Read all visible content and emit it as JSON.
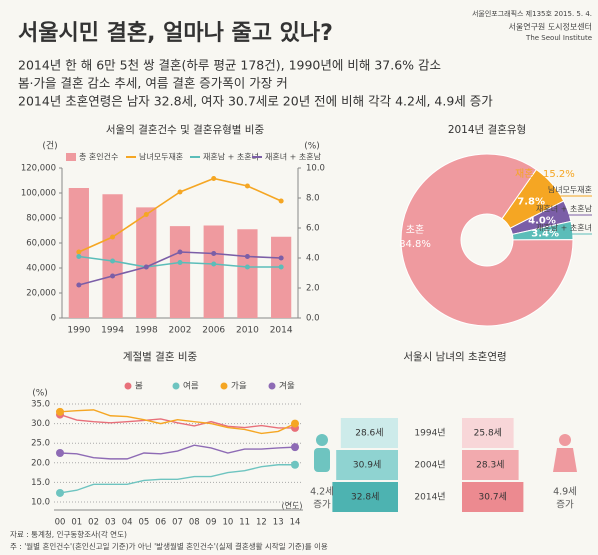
{
  "header": {
    "title": "서울시민 결혼, 얼마나 줄고 있나?",
    "publisher": [
      "서울인포그래픽스 제135호 2015. 5. 4.",
      "서울연구원 도시정보센터",
      "The Seoul Institute"
    ],
    "lines": [
      "2014년 한 해 6만 5천 쌍 결혼(하루 평균 178건), 1990년에 비해 37.6% 감소",
      "봄·가을 결혼 감소 추세, 여름 결혼 증가폭이 가장 커",
      "2014년 초혼연령은 남자 32.8세, 여자 30.7세로 20년 전에 비해 각각 4.2세, 4.9세 증가"
    ]
  },
  "chart_data": [
    {
      "type": "bar",
      "title": "서울의 결혼건수 및 결혼유형별 비중",
      "yunit": "(건)",
      "y2unit": "(%)",
      "categories": [
        "1990",
        "1994",
        "1998",
        "2002",
        "2006",
        "2010",
        "2014"
      ],
      "series": [
        {
          "name": "총 혼인건수",
          "color": "#ef9a9f",
          "values": [
            104000,
            99000,
            88500,
            73500,
            74000,
            71000,
            65000
          ]
        },
        {
          "name": "남녀모두재혼",
          "color": "#f5a623",
          "axis": "y2",
          "values": [
            4.4,
            5.4,
            6.9,
            8.4,
            9.3,
            8.8,
            7.8
          ]
        },
        {
          "name": "재혼남 + 초혼녀",
          "color": "#5bbdb9",
          "axis": "y2",
          "values": [
            4.1,
            3.8,
            3.4,
            3.7,
            3.6,
            3.4,
            3.4
          ]
        },
        {
          "name": "재혼녀 + 초혼남",
          "color": "#7b5ea7",
          "axis": "y2",
          "values": [
            2.2,
            2.8,
            3.4,
            4.4,
            4.3,
            4.1,
            4.0
          ]
        }
      ],
      "ylim": [
        0,
        120000
      ],
      "yticks": [
        0,
        {
          "value": 20000,
          "label": "20,000"
        },
        {
          "value": 40000,
          "label": "40,000"
        },
        {
          "value": 60000,
          "label": "60,000"
        },
        {
          "value": 80000,
          "label": "80,000"
        },
        {
          "value": 100000,
          "label": "100,000"
        },
        {
          "value": 120000,
          "label": "120,000"
        }
      ],
      "y2lim": [
        0,
        10
      ],
      "y2ticks": [
        {
          "value": 0,
          "label": "0.0"
        },
        {
          "value": 2,
          "label": "2.0"
        },
        {
          "value": 4,
          "label": "4.0"
        },
        {
          "value": 6,
          "label": "6.0"
        },
        {
          "value": 8,
          "label": "8.0"
        },
        {
          "value": 10,
          "label": "10.0"
        }
      ],
      "grid": false
    },
    {
      "type": "pie",
      "title": "2014년 결혼유형",
      "categories": [
        "남녀모두재혼",
        "재혼녀 + 초혼남",
        "재혼남 + 초혼녀",
        "초혼"
      ],
      "values": [
        7.8,
        4.0,
        3.4,
        84.8
      ],
      "value_labels": [
        "7.8%",
        "4.0%",
        "3.4%",
        "84.8%"
      ],
      "colors": [
        "#f5a623",
        "#7b5ea7",
        "#5bbdb9",
        "#ef9a9f"
      ],
      "group": {
        "name": "재혼",
        "value": 15.2,
        "value_label": "15.2%"
      }
    },
    {
      "type": "line",
      "title": "계절별 결혼 비중",
      "yunit": "(%)",
      "xunit": "(연도)",
      "categories": [
        "00",
        "01",
        "02",
        "03",
        "04",
        "05",
        "06",
        "07",
        "08",
        "09",
        "10",
        "11",
        "12",
        "13",
        "14"
      ],
      "series": [
        {
          "name": "봄",
          "color": "#e8707a",
          "values": [
            32.3,
            30.9,
            30.5,
            30.2,
            30.5,
            30.8,
            31.2,
            30.2,
            29.4,
            30.5,
            29.3,
            29.0,
            29.5,
            28.9,
            28.9
          ]
        },
        {
          "name": "여름",
          "color": "#6ec4c0",
          "values": [
            12.3,
            13.0,
            14.5,
            14.5,
            14.5,
            15.5,
            15.8,
            15.8,
            16.5,
            16.5,
            17.5,
            18.0,
            19.0,
            19.5,
            19.5
          ]
        },
        {
          "name": "가을",
          "color": "#f5a623",
          "values": [
            33.0,
            33.3,
            33.5,
            32.0,
            31.8,
            31.0,
            30.0,
            31.0,
            30.5,
            30.0,
            29.0,
            28.5,
            27.5,
            28.0,
            30.0
          ]
        },
        {
          "name": "겨울",
          "color": "#8e6bb5",
          "values": [
            22.5,
            22.3,
            21.3,
            21.0,
            21.0,
            22.5,
            22.3,
            23.0,
            24.5,
            23.8,
            22.5,
            23.5,
            23.5,
            23.8,
            24.0
          ]
        }
      ],
      "ylim": [
        10,
        35
      ],
      "yticks": [
        {
          "value": 10,
          "label": "10.0"
        },
        {
          "value": 15,
          "label": "15.0"
        },
        {
          "value": 20,
          "label": "20.0"
        },
        {
          "value": 25,
          "label": "25.0"
        },
        {
          "value": 30,
          "label": "30.0"
        },
        {
          "value": 35,
          "label": "35.0"
        }
      ],
      "grid": true
    },
    {
      "type": "pyramid",
      "title": "서울시 남녀의 초혼연령",
      "categories": [
        "1994년",
        "2004년",
        "2014년"
      ],
      "series": [
        {
          "colors": [
            "#cdebea",
            "#8fd3d1",
            "#4db3b1"
          ],
          "values": [
            28.6,
            30.9,
            32.8
          ],
          "value_labels": [
            "28.6세",
            "30.9세",
            "32.8세"
          ]
        },
        {
          "colors": [
            "#f8d6d8",
            "#f2aaae",
            "#ec8a90"
          ],
          "values": [
            25.8,
            28.3,
            30.7
          ],
          "value_labels": [
            "25.8세",
            "28.3세",
            "30.7세"
          ]
        }
      ],
      "annotations": [
        [
          "4.2세",
          "증가"
        ],
        [
          "4.9세",
          "증가"
        ]
      ]
    }
  ],
  "footer": [
    "자료 : 통계청, 인구동향조사(각 연도)",
    "주 : '월별 혼인건수'(혼인신고일 기준)가 아닌 '발생월별 혼인건수'(실제 결혼생활 시작일 기준)를 이용"
  ]
}
